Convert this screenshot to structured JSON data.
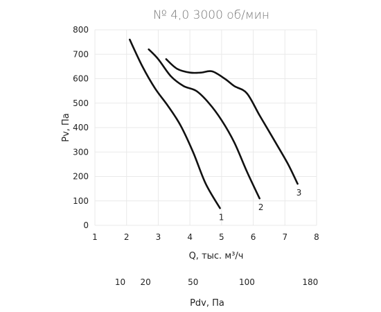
{
  "chart_data": {
    "type": "line",
    "title": "№ 4,0 3000 об/мин",
    "xlabel": "Q, тыс. м³/ч",
    "ylabel": "Pv, Па",
    "xlim": [
      1,
      8
    ],
    "ylim": [
      0,
      800
    ],
    "x_ticks": [
      1,
      2,
      3,
      4,
      5,
      6,
      7,
      8
    ],
    "y_ticks": [
      0,
      100,
      200,
      300,
      400,
      500,
      600,
      700,
      800
    ],
    "grid": true,
    "series": [
      {
        "name": "1",
        "points": [
          [
            2.1,
            760
          ],
          [
            2.5,
            650
          ],
          [
            2.9,
            560
          ],
          [
            3.3,
            490
          ],
          [
            3.7,
            410
          ],
          [
            4.1,
            300
          ],
          [
            4.5,
            170
          ],
          [
            4.95,
            70
          ]
        ]
      },
      {
        "name": "2",
        "points": [
          [
            2.7,
            720
          ],
          [
            3.0,
            680
          ],
          [
            3.4,
            610
          ],
          [
            3.8,
            570
          ],
          [
            4.2,
            550
          ],
          [
            4.6,
            500
          ],
          [
            5.0,
            430
          ],
          [
            5.4,
            340
          ],
          [
            5.8,
            220
          ],
          [
            6.2,
            110
          ]
        ]
      },
      {
        "name": "3",
        "points": [
          [
            3.25,
            680
          ],
          [
            3.6,
            640
          ],
          [
            4.0,
            625
          ],
          [
            4.35,
            625
          ],
          [
            4.7,
            630
          ],
          [
            5.1,
            600
          ],
          [
            5.4,
            570
          ],
          [
            5.8,
            540
          ],
          [
            6.2,
            450
          ],
          [
            6.7,
            340
          ],
          [
            7.1,
            250
          ],
          [
            7.4,
            170
          ]
        ]
      }
    ],
    "secondary_axis": {
      "label": "Pdv, Па",
      "ticks": [
        {
          "label": "10",
          "q": 1.8
        },
        {
          "label": "20",
          "q": 2.6
        },
        {
          "label": "50",
          "q": 4.1
        },
        {
          "label": "100",
          "q": 5.8
        },
        {
          "label": "180",
          "q": 7.8
        }
      ]
    }
  }
}
